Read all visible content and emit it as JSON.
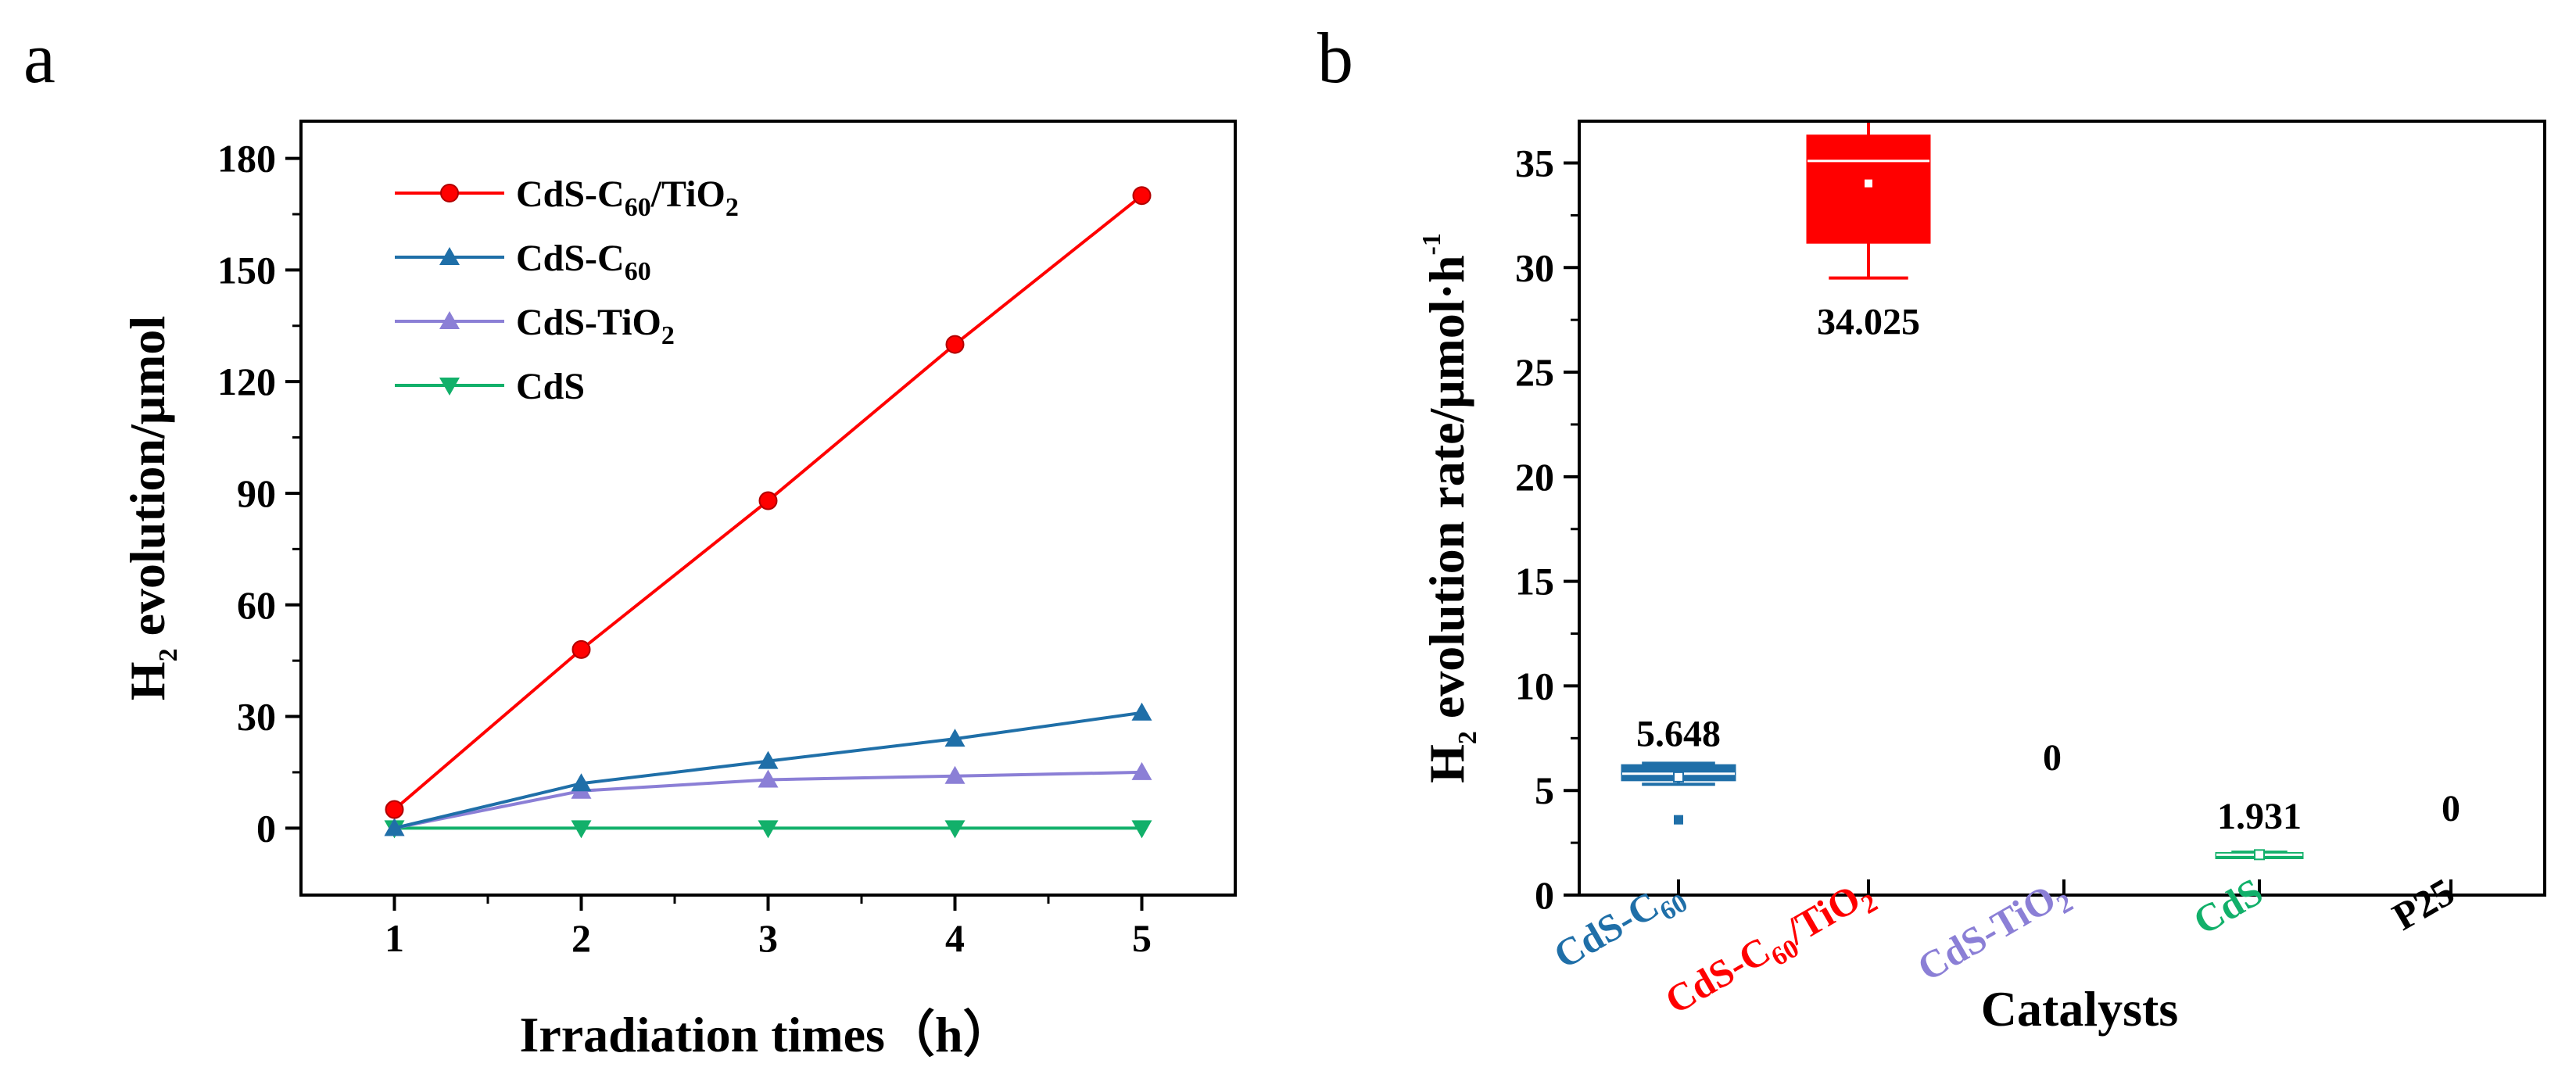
{
  "panels": {
    "a": {
      "letter": "a"
    },
    "b": {
      "letter": "b"
    }
  },
  "chart_data": [
    {
      "type": "line",
      "panel": "a",
      "xlabel": "Irradiation times（h）",
      "ylabel": {
        "prefix": "H",
        "sub": "2",
        "suffix": " evolution/μmol"
      },
      "x": [
        1,
        2,
        3,
        4,
        5
      ],
      "xlim": [
        0.5,
        5.5
      ],
      "ylim": [
        -18,
        190
      ],
      "yticks": [
        0,
        30,
        60,
        90,
        120,
        150,
        180
      ],
      "legend_position": "top-left",
      "series": [
        {
          "name": "CdS-C60/TiO2",
          "legend": [
            "CdS-C",
            "60",
            "/TiO",
            "2"
          ],
          "color": "#ff0000",
          "marker": "circle",
          "values": [
            5,
            48,
            88,
            130,
            170
          ]
        },
        {
          "name": "CdS-C60",
          "legend": [
            "CdS-C",
            "60"
          ],
          "color": "#1f6fa8",
          "marker": "triangle-up",
          "values": [
            0,
            12,
            18,
            24,
            31
          ]
        },
        {
          "name": "CdS-TiO2",
          "legend": [
            "CdS-TiO",
            "2"
          ],
          "color": "#8b7fd6",
          "marker": "triangle-up",
          "values": [
            0,
            10,
            13,
            14,
            15
          ]
        },
        {
          "name": "CdS",
          "legend": [
            "CdS"
          ],
          "color": "#12b06a",
          "marker": "triangle-down",
          "values": [
            0,
            0,
            0,
            0,
            0
          ]
        }
      ]
    },
    {
      "type": "box",
      "panel": "b",
      "xlabel": "Catalysts",
      "ylabel": {
        "prefix": "H",
        "sub": "2",
        "suffix": " evolution rate/μmol·h",
        "sup": "-1"
      },
      "ylim": [
        0,
        37
      ],
      "yticks": [
        0,
        5,
        10,
        15,
        20,
        25,
        30,
        35
      ],
      "categories": [
        {
          "name": "CdS-C60",
          "label": [
            "CdS-C",
            "60"
          ],
          "color": "#1f6fa8",
          "mean": 5.648,
          "label_value": "5.648",
          "q1": 5.5,
          "median": 5.8,
          "q3": 6.2,
          "whisker_low": 5.3,
          "whisker_high": 6.3,
          "outlier": 3.6
        },
        {
          "name": "CdS-C60/TiO2",
          "label": [
            "CdS-C",
            "60",
            "/TiO",
            "2"
          ],
          "color": "#ff0000",
          "mean": 34.025,
          "label_value": "34.025",
          "q1": 31.2,
          "median": 35.1,
          "q3": 36.3,
          "whisker_low": 29.5,
          "whisker_high": 37.0
        },
        {
          "name": "CdS-TiO2",
          "label": [
            "CdS-TiO",
            "2"
          ],
          "color": "#8b7fd6",
          "mean": 0,
          "label_value": "0"
        },
        {
          "name": "CdS",
          "label": [
            "CdS"
          ],
          "color": "#12b06a",
          "mean": 1.931,
          "label_value": "1.931",
          "q1": 1.85,
          "median": 1.93,
          "q3": 2.0,
          "whisker_low": 1.8,
          "whisker_high": 2.05
        },
        {
          "name": "P25",
          "label": [
            "P25"
          ],
          "color": "#000000",
          "mean": 0,
          "label_value": "0"
        }
      ]
    }
  ]
}
